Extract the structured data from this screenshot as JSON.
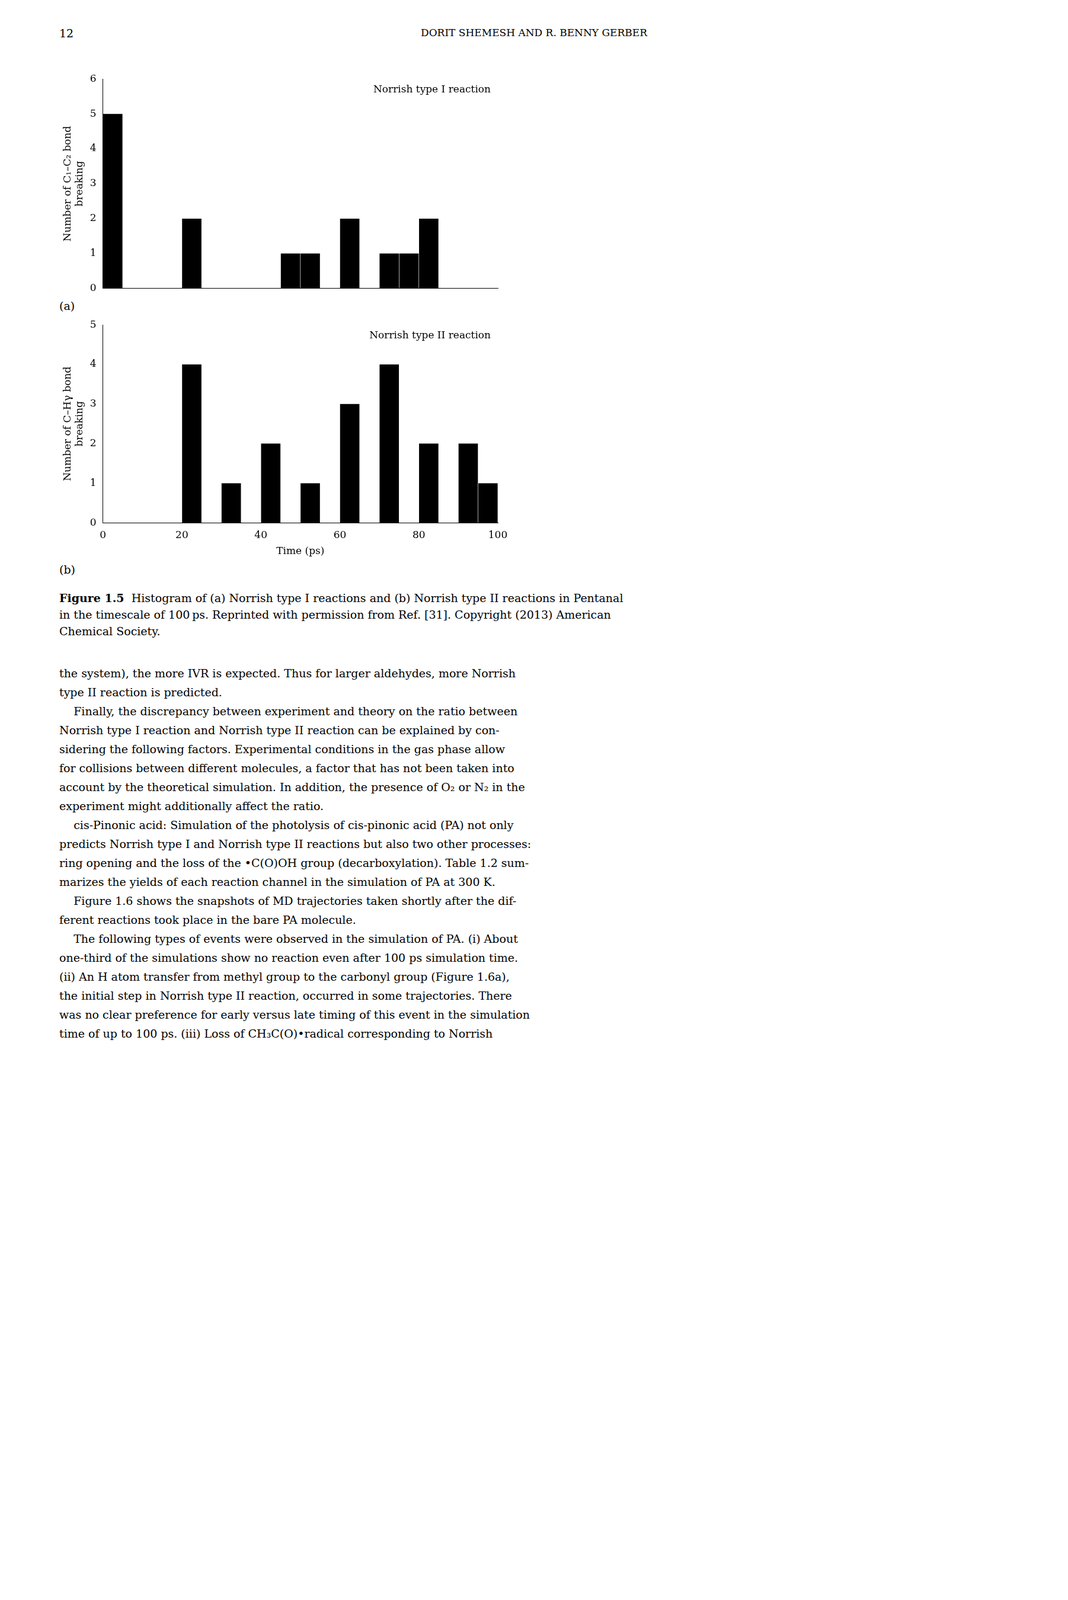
{
  "chart_data": [
    {
      "type": "bar",
      "annotations": [
        "12",
        "DORIT SHEMESH AND R. BENNY GERBER",
        "Norrish type I reaction",
        "(a)"
      ],
      "ylabel": "Number of C₁–C₂ bond\nbreaking",
      "bins": [
        0,
        5,
        10,
        15,
        20,
        25,
        30,
        35,
        40,
        45,
        50,
        55,
        60,
        65,
        70,
        75,
        80,
        85,
        90,
        95,
        100
      ],
      "values": [
        5,
        0,
        0,
        0,
        2,
        0,
        0,
        0,
        0,
        1,
        1,
        0,
        2,
        0,
        1,
        1,
        2,
        0,
        0,
        0
      ],
      "color": "#000000",
      "xlim": [
        0,
        100
      ],
      "xticks": [
        0,
        20,
        40,
        60,
        80,
        100
      ],
      "ylim": [
        0,
        6
      ],
      "yticks": [
        0,
        1,
        2,
        3,
        4,
        5,
        6
      ],
      "grid": false,
      "tick_labels": "y"
    },
    {
      "type": "bar",
      "annotations": [
        "Norrish type II reaction",
        "(b)",
        "Figure 1.5",
        "Histogram of (a) Norrish type I reactions and (b) Norrish type II reactions in Pentanal",
        "in the timescale of 100 ps. Reprinted with permission from Ref. [31]. Copyright (2013) American",
        "Chemical Society.",
        "the system), the more IVR is expected. Thus for larger aldehydes, more Norrish",
        "type II reaction is predicted.",
        "    Finally, the discrepancy between experiment and theory on the ratio between",
        "Norrish type I reaction and Norrish type II reaction can be explained by con-",
        "sidering the following factors. Experimental conditions in the gas phase allow",
        "for collisions between different molecules, a factor that has not been taken into",
        "account by the theoretical simulation. In addition, the presence of O₂ or N₂ in the",
        "experiment might additionally affect the ratio.",
        "    cis-Pinonic acid: Simulation of the photolysis of cis-pinonic acid (PA) not only",
        "predicts Norrish type I and Norrish type II reactions but also two other processes:",
        "ring opening and the loss of the •C(O)OH group (decarboxylation). Table 1.2 sum-",
        "marizes the yields of each reaction channel in the simulation of PA at 300 K.",
        "    Figure 1.6 shows the snapshots of MD trajectories taken shortly after the dif-",
        "ferent reactions took place in the bare PA molecule.",
        "    The following types of events were observed in the simulation of PA. (i) About",
        "one-third of the simulations show no reaction even after 100 ps simulation time.",
        "(ii) An H atom transfer from methyl group to the carbonyl group (Figure 1.6a),",
        "the initial step in Norrish type II reaction, occurred in some trajectories. There",
        "was no clear preference for early versus late timing of this event in the simulation",
        "time of up to 100 ps. (iii) Loss of CH₃C(O)•radical corresponding to Norrish"
      ],
      "ylabel": "Number of C–Hγ bond\nbreaking",
      "xlabel": "Time (ps)",
      "bins": [
        0,
        5,
        10,
        15,
        20,
        25,
        30,
        35,
        40,
        45,
        50,
        55,
        60,
        65,
        70,
        75,
        80,
        85,
        90,
        95,
        100
      ],
      "values": [
        0,
        0,
        0,
        0,
        4,
        0,
        1,
        0,
        2,
        0,
        1,
        0,
        3,
        0,
        4,
        0,
        2,
        0,
        2,
        1
      ],
      "color": "#000000",
      "xlim": [
        0,
        100
      ],
      "xticks": [
        0,
        20,
        40,
        60,
        80,
        100
      ],
      "ylim": [
        0,
        5
      ],
      "yticks": [
        0,
        1,
        2,
        3,
        4,
        5
      ],
      "grid": false
    }
  ]
}
